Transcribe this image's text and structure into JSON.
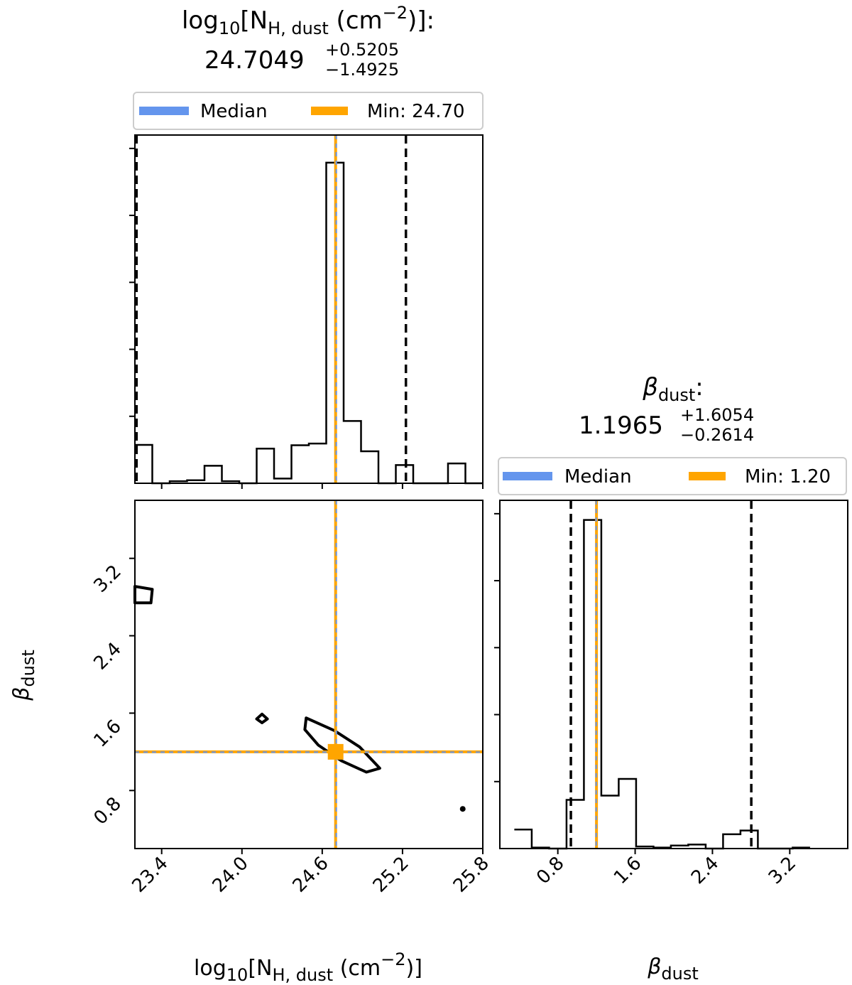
{
  "chart_data": {
    "type": "corner",
    "colors": {
      "median": "#6495ED",
      "best_fit": "#FFA500",
      "ink": "#000000"
    },
    "params": {
      "nh": {
        "title_prefix": "log",
        "title_sub10": "10",
        "title_bracket": "[N",
        "title_sub": "H, dust",
        "title_unit": " (cm",
        "title_sup": "−2",
        "title_end": ")]:",
        "value": "24.7049",
        "plus": "+0.5205",
        "minus": "−1.4925",
        "median": 24.7049,
        "best_fit": 24.7,
        "lower": 23.2124,
        "upper": 25.2254,
        "range": [
          23.2,
          25.8
        ],
        "ticks": [
          "23.4",
          "24.0",
          "24.6",
          "25.2",
          "25.8"
        ],
        "tick_values": [
          23.4,
          24.0,
          24.6,
          25.2,
          25.8
        ],
        "hist_edges": [
          23.2,
          23.33,
          23.46,
          23.59,
          23.72,
          23.85,
          23.98,
          24.11,
          24.24,
          24.37,
          24.5,
          24.63,
          24.76,
          24.89,
          25.02,
          25.15,
          25.28,
          25.41,
          25.54,
          25.67,
          25.8
        ],
        "hist_counts": [
          11.4,
          0,
          0.6,
          0.9,
          5.2,
          0.6,
          0,
          10.3,
          1.4,
          11.3,
          11.8,
          95.3,
          18.5,
          9.5,
          0,
          5.4,
          0,
          0,
          5.9,
          0
        ],
        "hist_max": 103.5,
        "axis_label_prefix": "log",
        "axis_label_sub10": "10",
        "axis_label_bracket": "[N",
        "axis_label_sub": "H, dust",
        "axis_label_unit": " (cm",
        "axis_label_sup": "−2",
        "axis_label_end": ")]",
        "legend_median": "Median",
        "legend_min": "Min: 24.70"
      },
      "beta": {
        "title_symbol": "β",
        "title_sub": "dust",
        "title_end": ":",
        "value": "1.1965",
        "plus": "+1.6054",
        "minus": "−0.2614",
        "median": 1.1965,
        "best_fit": 1.2,
        "lower": 0.9351,
        "upper": 2.8019,
        "range": [
          0.2,
          3.8
        ],
        "ticks": [
          "0.8",
          "1.6",
          "2.4",
          "3.2"
        ],
        "tick_values": [
          0.8,
          1.6,
          2.4,
          3.2
        ],
        "hist_edges": [
          0.35,
          0.53,
          0.71,
          0.89,
          1.07,
          1.25,
          1.43,
          1.61,
          1.79,
          1.97,
          2.15,
          2.33,
          2.51,
          2.69,
          2.87,
          3.05,
          3.23,
          3.41
        ],
        "hist_counts": [
          5.7,
          0.3,
          0,
          14.6,
          98.6,
          15.9,
          20.9,
          0.6,
          0.3,
          0.9,
          1.2,
          0,
          4.3,
          5.4,
          0,
          0,
          0.3
        ],
        "hist_max": 104.5,
        "axis_label_symbol": "β",
        "axis_label_sub": "dust",
        "legend_median": "Median",
        "legend_min": "Min: 1.20"
      }
    },
    "contours": [
      {
        "name": "main-contour",
        "points": [
          [
            24.48,
            1.55
          ],
          [
            24.69,
            1.42
          ],
          [
            24.88,
            1.25
          ],
          [
            25.03,
            1.03
          ],
          [
            24.93,
            0.99
          ],
          [
            24.74,
            1.11
          ],
          [
            24.57,
            1.27
          ],
          [
            24.47,
            1.43
          ]
        ]
      },
      {
        "name": "diamond-contour",
        "points": [
          [
            24.15,
            1.59
          ],
          [
            24.19,
            1.54
          ],
          [
            24.15,
            1.5
          ],
          [
            24.11,
            1.54
          ]
        ]
      },
      {
        "name": "edge-contour",
        "points": [
          [
            23.2,
            2.91
          ],
          [
            23.33,
            2.88
          ],
          [
            23.32,
            2.74
          ],
          [
            23.2,
            2.74
          ]
        ]
      }
    ],
    "dot": [
      25.65,
      0.61
    ]
  }
}
